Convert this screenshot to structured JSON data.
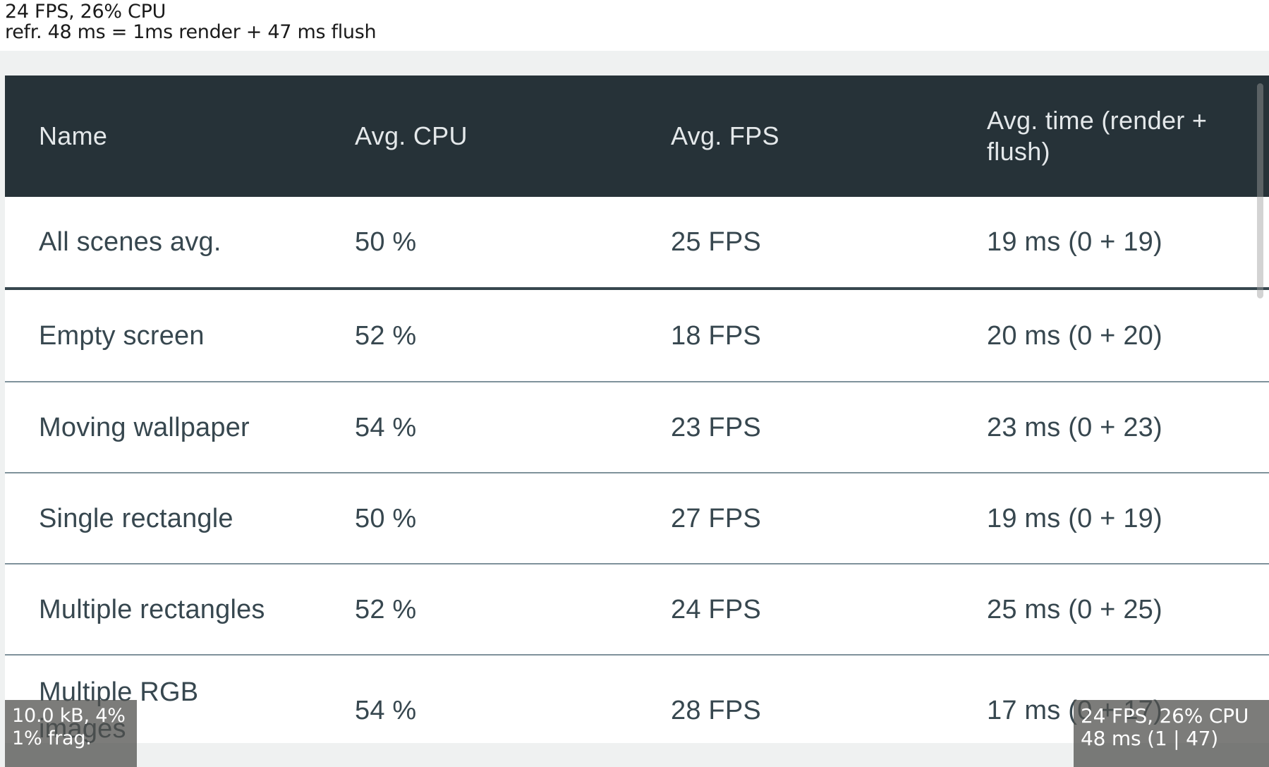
{
  "status_text": {
    "line1": "24 FPS, 26% CPU",
    "line2": "refr. 48 ms = 1ms render + 47 ms flush"
  },
  "table": {
    "columns": [
      "Name",
      "Avg. CPU",
      "Avg. FPS",
      "Avg. time (render + flush)"
    ],
    "rows": [
      {
        "name": "All scenes avg.",
        "cpu": "50 %",
        "fps": "25 FPS",
        "time": "19 ms (0 + 19)"
      },
      {
        "name": "Empty screen",
        "cpu": "52 %",
        "fps": "18 FPS",
        "time": "20 ms (0 + 20)"
      },
      {
        "name": "Moving wallpaper",
        "cpu": "54 %",
        "fps": "23 FPS",
        "time": "23 ms (0 + 23)"
      },
      {
        "name": "Single rectangle",
        "cpu": "50 %",
        "fps": "27 FPS",
        "time": "19 ms (0 + 19)"
      },
      {
        "name": "Multiple rectangles",
        "cpu": "52 %",
        "fps": "24 FPS",
        "time": "25 ms (0 + 25)"
      },
      {
        "name": "Multiple RGB\nimages",
        "cpu": "54 %",
        "fps": "28 FPS",
        "time": "17 ms (0 + 17)"
      }
    ]
  },
  "overlays": {
    "memory": {
      "line1": "10.0 kB, 4%",
      "line2": "1% frag."
    },
    "perf": {
      "line1": "24 FPS, 26% CPU",
      "line2": "48 ms (1 | 47)"
    }
  },
  "colors": {
    "header_bg": "#263238",
    "header_text": "#e4e8ea",
    "cell_text": "#37474f",
    "page_bg": "#eff1f1",
    "summary_divider": "#37474f",
    "overlay_text": "#ffffff"
  }
}
